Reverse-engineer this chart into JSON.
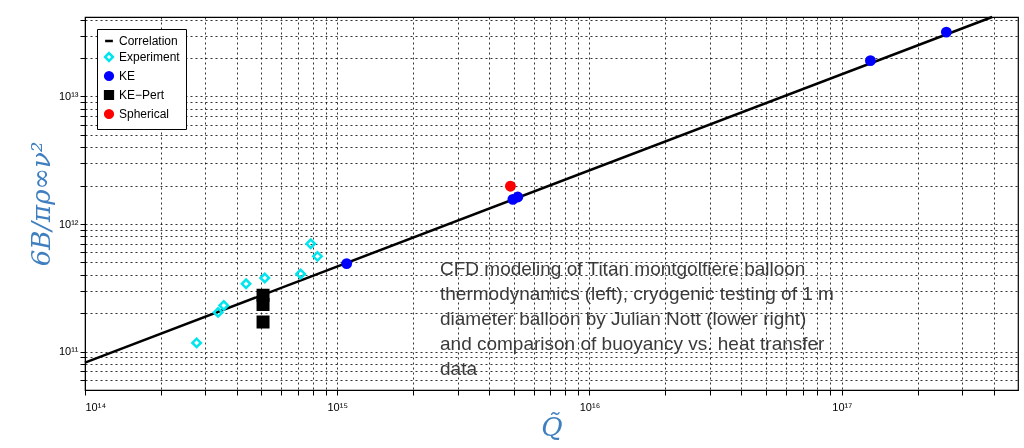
{
  "chart_data": {
    "type": "scatter",
    "xlabel": "Q̃",
    "ylabel": "6B/πρ∞ν²",
    "log": "xy",
    "grid": true,
    "legend": "top left",
    "xlim": [
      100000000000000.0,
      5e+17
    ],
    "ylim": [
      50000000000.0,
      42000000000000.0
    ],
    "xticks": [
      {
        "value": 100000000000000.0,
        "label": "10¹⁴"
      },
      {
        "value": 200000000000000.0,
        "label": null
      },
      {
        "value": 300000000000000.0,
        "label": null
      },
      {
        "value": 400000000000000.0,
        "label": null
      },
      {
        "value": 500000000000000.0,
        "label": null
      },
      {
        "value": 600000000000000.0,
        "label": null
      },
      {
        "value": 700000000000000.0,
        "label": null
      },
      {
        "value": 800000000000000.0,
        "label": null
      },
      {
        "value": 900000000000000.0,
        "label": null
      },
      {
        "value": 1000000000000000.0,
        "label": "10¹⁵"
      },
      {
        "value": 2000000000000000.0,
        "label": null
      },
      {
        "value": 3000000000000000.0,
        "label": null
      },
      {
        "value": 4000000000000000.0,
        "label": null
      },
      {
        "value": 5000000000000000.0,
        "label": null
      },
      {
        "value": 6000000000000000.0,
        "label": null
      },
      {
        "value": 7000000000000000.0,
        "label": null
      },
      {
        "value": 8000000000000000.0,
        "label": null
      },
      {
        "value": 9000000000000000.0,
        "label": null
      },
      {
        "value": 1e+16,
        "label": "10¹⁶"
      },
      {
        "value": 2e+16,
        "label": null
      },
      {
        "value": 3e+16,
        "label": null
      },
      {
        "value": 4e+16,
        "label": null
      },
      {
        "value": 5e+16,
        "label": null
      },
      {
        "value": 6e+16,
        "label": null
      },
      {
        "value": 7e+16,
        "label": null
      },
      {
        "value": 8e+16,
        "label": null
      },
      {
        "value": 9e+16,
        "label": null
      },
      {
        "value": 1e+17,
        "label": "10¹⁷"
      },
      {
        "value": 2e+17,
        "label": null
      },
      {
        "value": 3e+17,
        "label": null
      },
      {
        "value": 4e+17,
        "label": null
      }
    ],
    "yticks": [
      {
        "value": 60000000000.0,
        "label": null
      },
      {
        "value": 70000000000.0,
        "label": null
      },
      {
        "value": 80000000000.0,
        "label": null
      },
      {
        "value": 90000000000.0,
        "label": null
      },
      {
        "value": 100000000000.0,
        "label": "10¹¹"
      },
      {
        "value": 200000000000.0,
        "label": null
      },
      {
        "value": 300000000000.0,
        "label": null
      },
      {
        "value": 400000000000.0,
        "label": null
      },
      {
        "value": 500000000000.0,
        "label": null
      },
      {
        "value": 600000000000.0,
        "label": null
      },
      {
        "value": 700000000000.0,
        "label": null
      },
      {
        "value": 800000000000.0,
        "label": null
      },
      {
        "value": 900000000000.0,
        "label": null
      },
      {
        "value": 1000000000000.0,
        "label": "10¹²"
      },
      {
        "value": 2000000000000.0,
        "label": null
      },
      {
        "value": 3000000000000.0,
        "label": null
      },
      {
        "value": 4000000000000.0,
        "label": null
      },
      {
        "value": 5000000000000.0,
        "label": null
      },
      {
        "value": 6000000000000.0,
        "label": null
      },
      {
        "value": 7000000000000.0,
        "label": null
      },
      {
        "value": 8000000000000.0,
        "label": null
      },
      {
        "value": 9000000000000.0,
        "label": null
      },
      {
        "value": 10000000000000.0,
        "label": "10¹³"
      },
      {
        "value": 20000000000000.0,
        "label": null
      },
      {
        "value": 30000000000000.0,
        "label": null
      },
      {
        "value": 40000000000000.0,
        "label": null
      }
    ],
    "series": [
      {
        "name": "Correlation",
        "type": "line",
        "color": "#000000",
        "marker": "none",
        "line_style": "solid",
        "x": [
          100000000000000.0,
          3.95e+17
        ],
        "values": [
          82000000000.0,
          42000000000000.0
        ]
      },
      {
        "name": "Experiment",
        "type": "scatter",
        "color": "#00e5ee",
        "marker": "diamond",
        "x": [
          277000000000000.0,
          337000000000000.0,
          355000000000000.0,
          435000000000000.0,
          516000000000000.0,
          716000000000000.0,
          785000000000000.0,
          835000000000000.0
        ],
        "values": [
          117000000000.0,
          203000000000.0,
          230000000000.0,
          340000000000.0,
          378000000000.0,
          406000000000.0,
          700000000000.0,
          558000000000.0
        ]
      },
      {
        "name": "KE",
        "type": "scatter",
        "color": "#0000ff",
        "marker": "circle",
        "x": [
          1090000000000000.0,
          4970000000000000.0,
          5200000000000000.0,
          1.3e+17,
          2.6e+17
        ],
        "values": [
          490000000000.0,
          1560000000000.0,
          1630000000000.0,
          19100000000000.0,
          32000000000000.0
        ]
      },
      {
        "name": "KE−Pert",
        "type": "scatter",
        "color": "#000000",
        "marker": "square",
        "x": [
          508000000000000.0,
          508000000000000.0,
          508000000000000.0
        ],
        "values": [
          276000000000.0,
          234000000000.0,
          171000000000.0
        ]
      },
      {
        "name": "Spherical",
        "type": "scatter",
        "color": "#ff0000",
        "marker": "circle",
        "x": [
          4860000000000000.0
        ],
        "values": [
          1980000000000.0
        ]
      }
    ],
    "annotations": [
      "CFD modeling of Titan montgolfière balloon\nthermodynamics (left), cryogenic testing of 1 m\ndiameter balloon by Julian Nott (lower right)\nand comparison of buoyancy vs. heat transfer\ndata"
    ]
  }
}
